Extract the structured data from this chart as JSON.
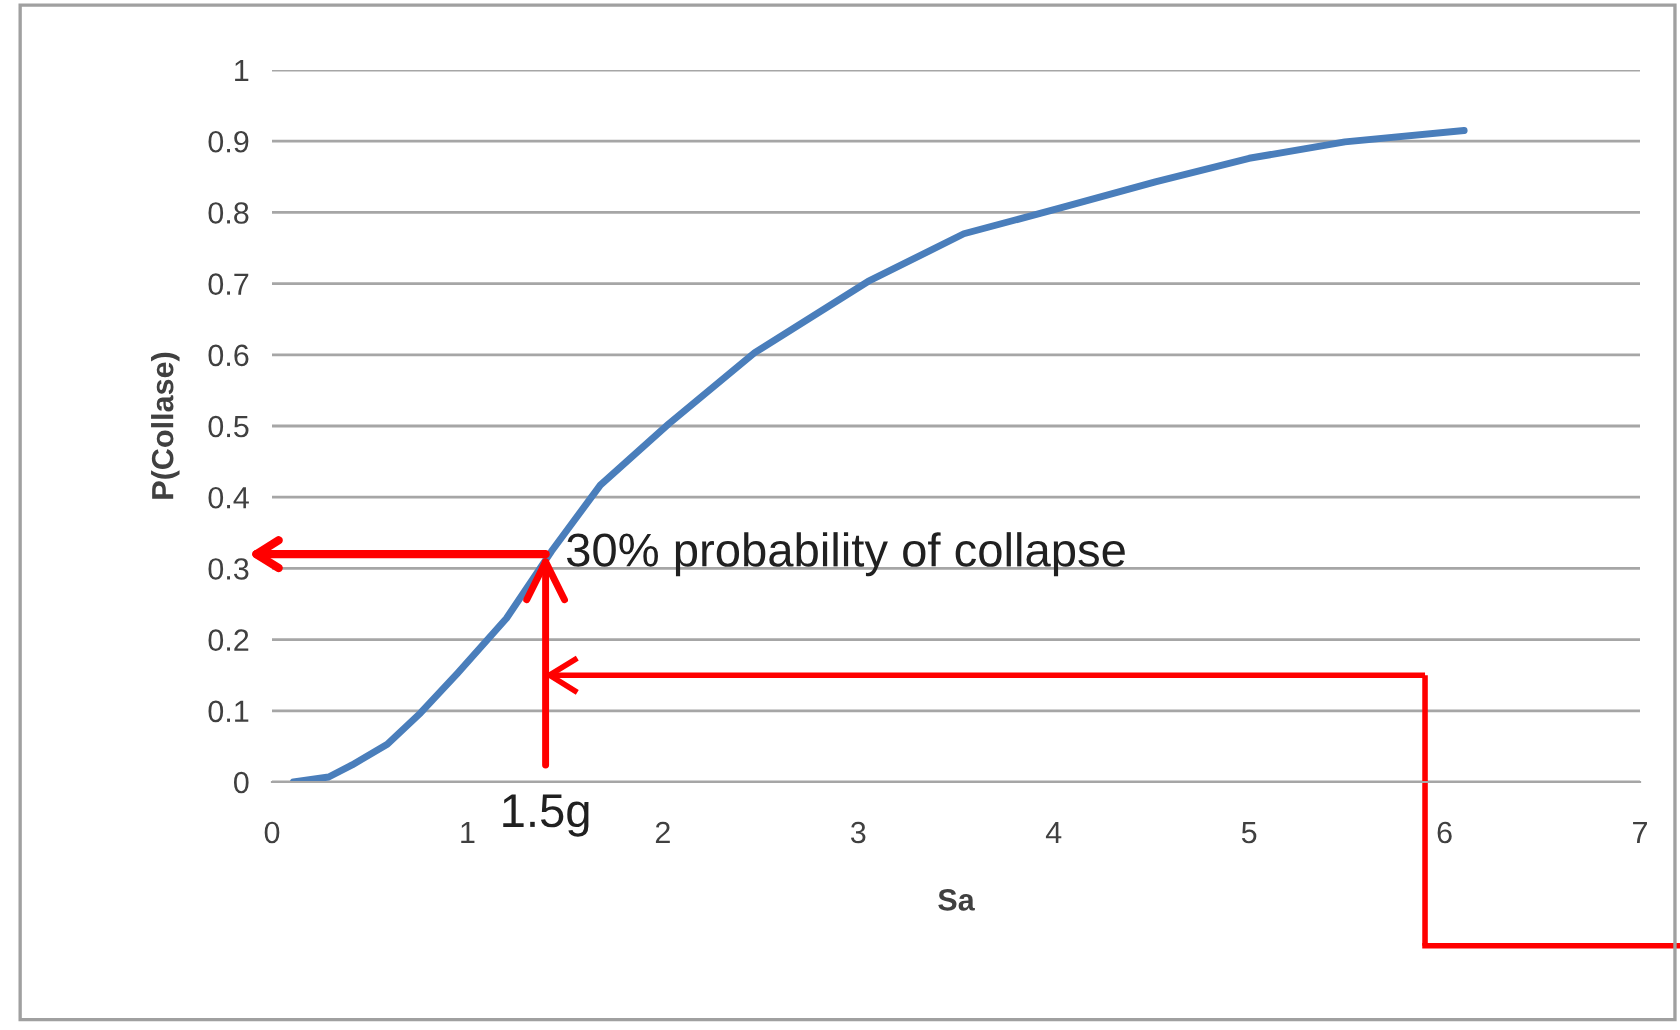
{
  "chart_data": {
    "type": "line",
    "xlabel": "Sa",
    "ylabel": "P(Collase)",
    "x": [
      0.11,
      0.29,
      0.41,
      0.59,
      0.76,
      0.95,
      1.2,
      1.43,
      1.68,
      2.03,
      2.47,
      3.05,
      3.54,
      4.03,
      4.52,
      5.0,
      5.49,
      6.1
    ],
    "series": [
      {
        "color": "#4a7ebb",
        "values": [
          0,
          0.007,
          0.024,
          0.053,
          0.097,
          0.153,
          0.23,
          0.324,
          0.417,
          0.503,
          0.603,
          0.703,
          0.77,
          0.806,
          0.843,
          0.876,
          0.899,
          0.915
        ]
      }
    ],
    "xlim": [
      0,
      7
    ],
    "xticks": [
      0,
      1,
      2,
      3,
      4,
      5,
      6,
      7
    ],
    "ylim": [
      0,
      1
    ],
    "yticks": [
      0,
      0.1,
      0.2,
      0.3,
      0.4,
      0.5,
      0.6,
      0.7,
      0.8,
      0.9,
      1
    ],
    "ref_lines": [
      {
        "axis": "y",
        "value": 0.15,
        "color": "#ff0000"
      },
      {
        "axis": "x",
        "value": 5.9,
        "color": "#ff0000"
      }
    ],
    "grid": "y",
    "marker": "none",
    "line_style": "solid",
    "annotations": [
      {
        "text": "30% probability of collapse",
        "x": 1.4,
        "y": 0.32
      },
      {
        "text": "1.5g",
        "x": 1.4,
        "y": 0.32
      }
    ]
  }
}
